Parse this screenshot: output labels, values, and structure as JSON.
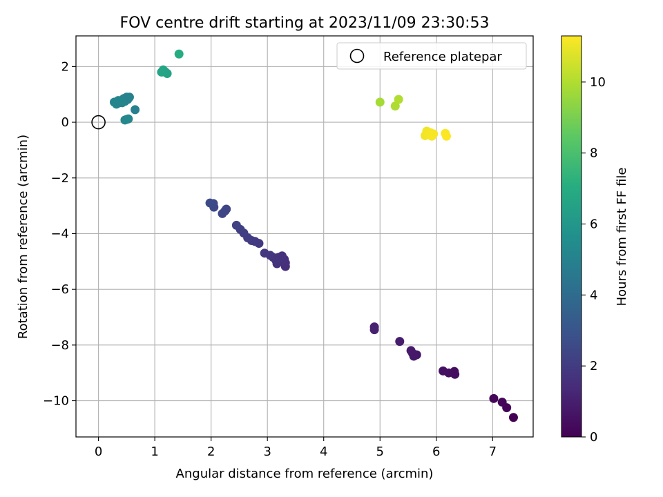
{
  "chart_data": {
    "type": "scatter",
    "title": "FOV centre drift starting at 2023/11/09 23:30:53",
    "xlabel": "Angular distance from reference (arcmin)",
    "ylabel": "Rotation from reference (arcmin)",
    "xlim": [
      -0.4,
      7.72
    ],
    "ylim": [
      -11.3,
      3.1
    ],
    "x_ticks": [
      0,
      1,
      2,
      3,
      4,
      5,
      6,
      7
    ],
    "y_ticks": [
      -10,
      -8,
      -6,
      -4,
      -2,
      0,
      2
    ],
    "grid": true,
    "legend": {
      "placement": "top-right",
      "entries": [
        "Reference platepar"
      ]
    },
    "reference_point": {
      "x": 0,
      "y": 0,
      "label": "Reference platepar"
    },
    "colorbar": {
      "label": "Hours from first FF file",
      "colormap": "viridis",
      "range": [
        0,
        11.3
      ],
      "ticks": [
        0,
        2,
        4,
        6,
        8,
        10
      ]
    },
    "points": [
      {
        "x": 7.37,
        "y": -10.6,
        "hours": 0.0
      },
      {
        "x": 7.25,
        "y": -10.25,
        "hours": 0.1
      },
      {
        "x": 7.17,
        "y": -10.05,
        "hours": 0.15
      },
      {
        "x": 7.02,
        "y": -9.92,
        "hours": 0.2
      },
      {
        "x": 6.32,
        "y": -8.95,
        "hours": 0.4
      },
      {
        "x": 6.33,
        "y": -9.05,
        "hours": 0.4
      },
      {
        "x": 6.22,
        "y": -9.0,
        "hours": 0.45
      },
      {
        "x": 6.12,
        "y": -8.93,
        "hours": 0.5
      },
      {
        "x": 5.65,
        "y": -8.35,
        "hours": 0.7
      },
      {
        "x": 5.6,
        "y": -8.4,
        "hours": 0.75
      },
      {
        "x": 5.58,
        "y": -8.3,
        "hours": 0.75
      },
      {
        "x": 5.55,
        "y": -8.2,
        "hours": 0.8
      },
      {
        "x": 5.35,
        "y": -7.87,
        "hours": 0.9
      },
      {
        "x": 4.9,
        "y": -7.35,
        "hours": 1.05
      },
      {
        "x": 4.9,
        "y": -7.45,
        "hours": 1.05
      },
      {
        "x": 3.32,
        "y": -5.18,
        "hours": 1.5
      },
      {
        "x": 3.32,
        "y": -5.05,
        "hours": 1.55
      },
      {
        "x": 3.3,
        "y": -4.92,
        "hours": 1.55
      },
      {
        "x": 3.26,
        "y": -4.8,
        "hours": 1.6
      },
      {
        "x": 3.22,
        "y": -5.0,
        "hours": 1.6
      },
      {
        "x": 3.2,
        "y": -4.85,
        "hours": 1.65
      },
      {
        "x": 3.17,
        "y": -5.08,
        "hours": 1.65
      },
      {
        "x": 3.15,
        "y": -4.95,
        "hours": 1.7
      },
      {
        "x": 3.1,
        "y": -4.85,
        "hours": 1.7
      },
      {
        "x": 3.05,
        "y": -4.78,
        "hours": 1.75
      },
      {
        "x": 2.95,
        "y": -4.7,
        "hours": 1.8
      },
      {
        "x": 2.85,
        "y": -4.35,
        "hours": 1.9
      },
      {
        "x": 2.78,
        "y": -4.28,
        "hours": 1.95
      },
      {
        "x": 2.72,
        "y": -4.25,
        "hours": 2.0
      },
      {
        "x": 2.65,
        "y": -4.15,
        "hours": 2.05
      },
      {
        "x": 2.58,
        "y": -3.98,
        "hours": 2.1
      },
      {
        "x": 2.52,
        "y": -3.85,
        "hours": 2.15
      },
      {
        "x": 2.45,
        "y": -3.7,
        "hours": 2.2
      },
      {
        "x": 2.27,
        "y": -3.12,
        "hours": 2.35
      },
      {
        "x": 2.25,
        "y": -3.18,
        "hours": 2.35
      },
      {
        "x": 2.2,
        "y": -3.28,
        "hours": 2.4
      },
      {
        "x": 2.05,
        "y": -3.05,
        "hours": 2.5
      },
      {
        "x": 2.04,
        "y": -2.92,
        "hours": 2.5
      },
      {
        "x": 1.98,
        "y": -2.9,
        "hours": 2.55
      },
      {
        "x": 0.65,
        "y": 0.45,
        "hours": 4.9
      },
      {
        "x": 0.55,
        "y": 0.9,
        "hours": 5.0
      },
      {
        "x": 0.52,
        "y": 0.82,
        "hours": 5.0
      },
      {
        "x": 0.5,
        "y": 0.9,
        "hours": 5.0
      },
      {
        "x": 0.47,
        "y": 0.75,
        "hours": 5.05
      },
      {
        "x": 0.45,
        "y": 0.85,
        "hours": 5.05
      },
      {
        "x": 0.42,
        "y": 0.7,
        "hours": 5.1
      },
      {
        "x": 0.4,
        "y": 0.78,
        "hours": 5.1
      },
      {
        "x": 0.37,
        "y": 0.7,
        "hours": 5.1
      },
      {
        "x": 0.35,
        "y": 0.78,
        "hours": 5.15
      },
      {
        "x": 0.32,
        "y": 0.65,
        "hours": 5.15
      },
      {
        "x": 0.28,
        "y": 0.72,
        "hours": 5.15
      },
      {
        "x": 0.53,
        "y": 0.12,
        "hours": 5.25
      },
      {
        "x": 0.5,
        "y": 0.1,
        "hours": 5.3
      },
      {
        "x": 0.47,
        "y": 0.08,
        "hours": 5.3
      },
      {
        "x": 1.2,
        "y": 1.78,
        "hours": 6.55
      },
      {
        "x": 1.22,
        "y": 1.75,
        "hours": 6.55
      },
      {
        "x": 1.18,
        "y": 1.82,
        "hours": 6.6
      },
      {
        "x": 1.15,
        "y": 1.88,
        "hours": 6.6
      },
      {
        "x": 1.12,
        "y": 1.8,
        "hours": 6.65
      },
      {
        "x": 1.43,
        "y": 2.45,
        "hours": 7.0
      },
      {
        "x": 5.0,
        "y": 0.72,
        "hours": 9.8
      },
      {
        "x": 5.27,
        "y": 0.58,
        "hours": 9.95
      },
      {
        "x": 5.33,
        "y": 0.82,
        "hours": 10.0
      },
      {
        "x": 5.8,
        "y": -0.48,
        "hours": 11.1
      },
      {
        "x": 5.83,
        "y": -0.32,
        "hours": 11.1
      },
      {
        "x": 5.86,
        "y": -0.45,
        "hours": 11.15
      },
      {
        "x": 5.9,
        "y": -0.38,
        "hours": 11.15
      },
      {
        "x": 5.92,
        "y": -0.5,
        "hours": 11.2
      },
      {
        "x": 5.95,
        "y": -0.42,
        "hours": 11.2
      },
      {
        "x": 6.16,
        "y": -0.4,
        "hours": 11.25
      },
      {
        "x": 6.18,
        "y": -0.5,
        "hours": 11.3
      }
    ]
  }
}
